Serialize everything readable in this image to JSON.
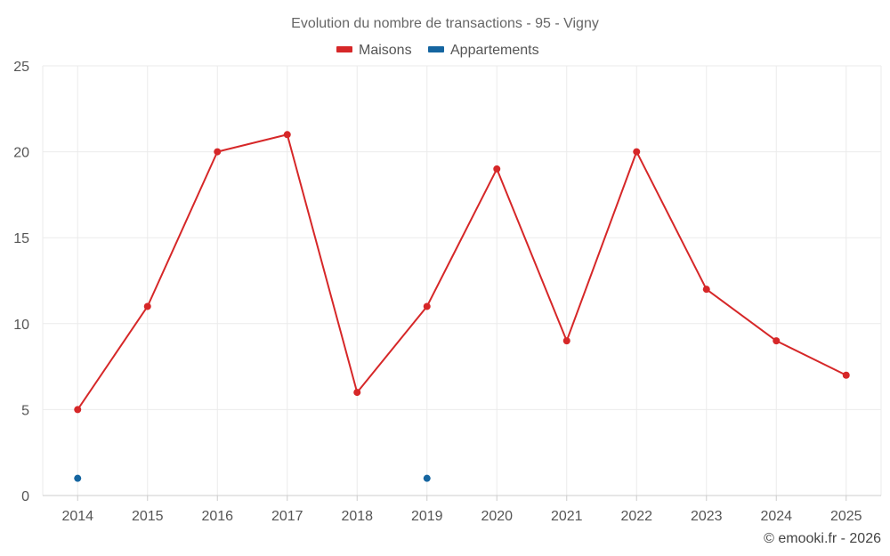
{
  "chart_data": {
    "type": "line",
    "title": "Evolution du nombre de transactions - 95 - Vigny",
    "categories": [
      "2014",
      "2015",
      "2016",
      "2017",
      "2018",
      "2019",
      "2020",
      "2021",
      "2022",
      "2023",
      "2024",
      "2025"
    ],
    "series": [
      {
        "name": "Maisons",
        "color": "#d62728",
        "values": [
          5,
          11,
          20,
          21,
          6,
          11,
          19,
          9,
          20,
          12,
          9,
          7
        ]
      },
      {
        "name": "Appartements",
        "color": "#1565a0",
        "values": [
          1,
          null,
          null,
          null,
          null,
          1,
          null,
          null,
          null,
          null,
          null,
          null
        ]
      }
    ],
    "yticks": [
      "0",
      "5",
      "10",
      "15",
      "20",
      "25"
    ],
    "ylim": [
      0,
      25
    ],
    "grid": true,
    "legend": "top-center",
    "xlabel": "",
    "ylabel": ""
  },
  "credit": "© emooki.fr - 2026"
}
